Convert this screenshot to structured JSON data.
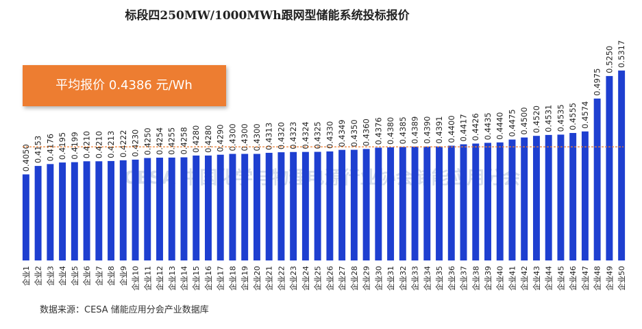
{
  "chart_data": {
    "type": "bar",
    "title": "标段四250MW/1000MWh跟网型储能系统投标报价",
    "categories": [
      "企业1",
      "企业2",
      "企业3",
      "企业4",
      "企业5",
      "企业6",
      "企业7",
      "企业8",
      "企业9",
      "企业10",
      "企业11",
      "企业12",
      "企业13",
      "企业14",
      "企业15",
      "企业16",
      "企业17",
      "企业18",
      "企业19",
      "企业20",
      "企业21",
      "企业22",
      "企业23",
      "企业24",
      "企业25",
      "企业26",
      "企业27",
      "企业28",
      "企业29",
      "企业30",
      "企业31",
      "企业32",
      "企业33",
      "企业34",
      "企业35",
      "企业36",
      "企业37",
      "企业38",
      "企业39",
      "企业40",
      "企业41",
      "企业42",
      "企业43",
      "企业44",
      "企业45",
      "企业46",
      "企业47",
      "企业48",
      "企业49",
      "企业50"
    ],
    "values": [
      0.405,
      0.4153,
      0.4176,
      0.4195,
      0.4199,
      0.421,
      0.421,
      0.4213,
      0.4222,
      0.423,
      0.425,
      0.4254,
      0.4255,
      0.4258,
      0.428,
      0.428,
      0.429,
      0.43,
      0.43,
      0.43,
      0.4313,
      0.432,
      0.4323,
      0.4324,
      0.4325,
      0.433,
      0.4349,
      0.435,
      0.436,
      0.4376,
      0.438,
      0.4385,
      0.4389,
      0.439,
      0.4391,
      0.44,
      0.4417,
      0.4426,
      0.4435,
      0.444,
      0.4475,
      0.45,
      0.452,
      0.4531,
      0.4535,
      0.4555,
      0.4574,
      0.4975,
      0.525,
      0.5317
    ],
    "value_labels": [
      "0.4050",
      "0.4153",
      "0.4176",
      "0.4195",
      "0.4199",
      "0.4210",
      "0.4210",
      "0.4213",
      "0.4222",
      "0.4230",
      "0.4250",
      "0.4254",
      "0.4255",
      "0.4258",
      "0.4280",
      "0.4280",
      "0.4290",
      "0.4300",
      "0.4300",
      "0.4300",
      "0.4313",
      "0.4320",
      "0.4323",
      "0.4324",
      "0.4325",
      "0.4330",
      "0.4349",
      "0.4350",
      "0.4360",
      "0.4376",
      "0.4380",
      "0.4385",
      "0.4389",
      "0.4390",
      "0.4391",
      "0.4400",
      "0.4417",
      "0.4426",
      "0.4435",
      "0.4440",
      "0.4475",
      "0.4500",
      "0.4520",
      "0.4531",
      "0.4535",
      "0.4555",
      "0.4574",
      "0.4975",
      "0.5250",
      "0.5317"
    ],
    "color": "#1e3fd0",
    "ylim": [
      0.3,
      0.55
    ],
    "average": 0.4386,
    "average_color": "#ed7d31",
    "average_label": "平均报价 0.4386 元/Wh",
    "watermark": "CESA 中国化学与物理电源行业协会储能应用分会",
    "source": "数据来源：CESA  储能应用分会产业数据库"
  }
}
